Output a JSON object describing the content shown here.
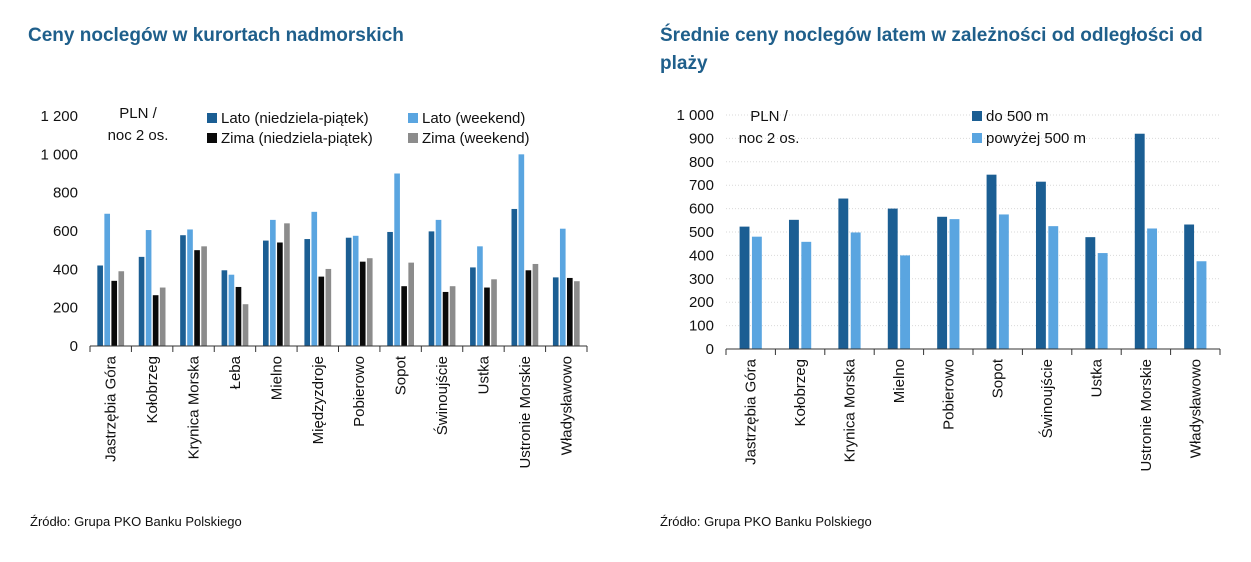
{
  "left": {
    "title": "Ceny noclegów w kurortach nadmorskich",
    "source": "Źródło: Grupa PKO Banku Polskiego",
    "chart_data": {
      "type": "bar",
      "unit_label": [
        "PLN /",
        "noc 2 os."
      ],
      "categories": [
        "Jastrzębia Góra",
        "Kołobrzeg",
        "Krynica Morska",
        "Łeba",
        "Mielno",
        "Międzyzdroje",
        "Pobierowo",
        "Sopot",
        "Świnoujście",
        "Ustka",
        "Ustronie Morskie",
        "Władysławowo"
      ],
      "ylim": [
        0,
        1200
      ],
      "yticks": [
        0,
        200,
        400,
        600,
        800,
        1000,
        1200
      ],
      "ytick_labels": [
        "0",
        "200",
        "400",
        "600",
        "800",
        "1 000",
        "1 200"
      ],
      "legend_position": "top",
      "series": [
        {
          "name": "Lato (niedziela-piątek)",
          "color": "#1b5e93",
          "values": [
            420,
            465,
            578,
            395,
            550,
            558,
            565,
            595,
            598,
            410,
            715,
            358
          ]
        },
        {
          "name": "Lato (weekend)",
          "color": "#5aa5e0",
          "values": [
            690,
            605,
            608,
            372,
            658,
            700,
            575,
            900,
            658,
            520,
            1000,
            612
          ]
        },
        {
          "name": "Zima (niedziela-piątek)",
          "color": "#0a0a0a",
          "values": [
            340,
            265,
            500,
            308,
            540,
            362,
            440,
            312,
            282,
            305,
            395,
            355
          ]
        },
        {
          "name": "Zima (weekend)",
          "color": "#8c8c8c",
          "values": [
            390,
            305,
            520,
            218,
            640,
            402,
            458,
            435,
            312,
            348,
            428,
            338
          ]
        }
      ]
    }
  },
  "right": {
    "title": "Średnie ceny noclegów latem w zależności od odległości od plaży",
    "source": "Źródło: Grupa PKO Banku Polskiego",
    "chart_data": {
      "type": "bar",
      "unit_label": [
        "PLN /",
        "noc 2 os."
      ],
      "categories": [
        "Jastrzębia Góra",
        "Kołobrzeg",
        "Krynica Morska",
        "Mielno",
        "Pobierowo",
        "Sopot",
        "Świnoujście",
        "Ustka",
        "Ustronie Morskie",
        "Władysławowo"
      ],
      "ylim": [
        0,
        1000
      ],
      "yticks": [
        0,
        100,
        200,
        300,
        400,
        500,
        600,
        700,
        800,
        900,
        1000
      ],
      "ytick_labels": [
        "0",
        "100",
        "200",
        "300",
        "400",
        "500",
        "600",
        "700",
        "800",
        "900",
        "1 000"
      ],
      "grid": true,
      "legend_position": "top",
      "series": [
        {
          "name": "do 500 m",
          "color": "#1b5e93",
          "values": [
            523,
            552,
            643,
            600,
            565,
            745,
            715,
            478,
            920,
            532
          ]
        },
        {
          "name": "powyżej 500 m",
          "color": "#5aa5e0",
          "values": [
            480,
            458,
            498,
            400,
            555,
            575,
            525,
            410,
            515,
            375
          ]
        }
      ]
    }
  }
}
